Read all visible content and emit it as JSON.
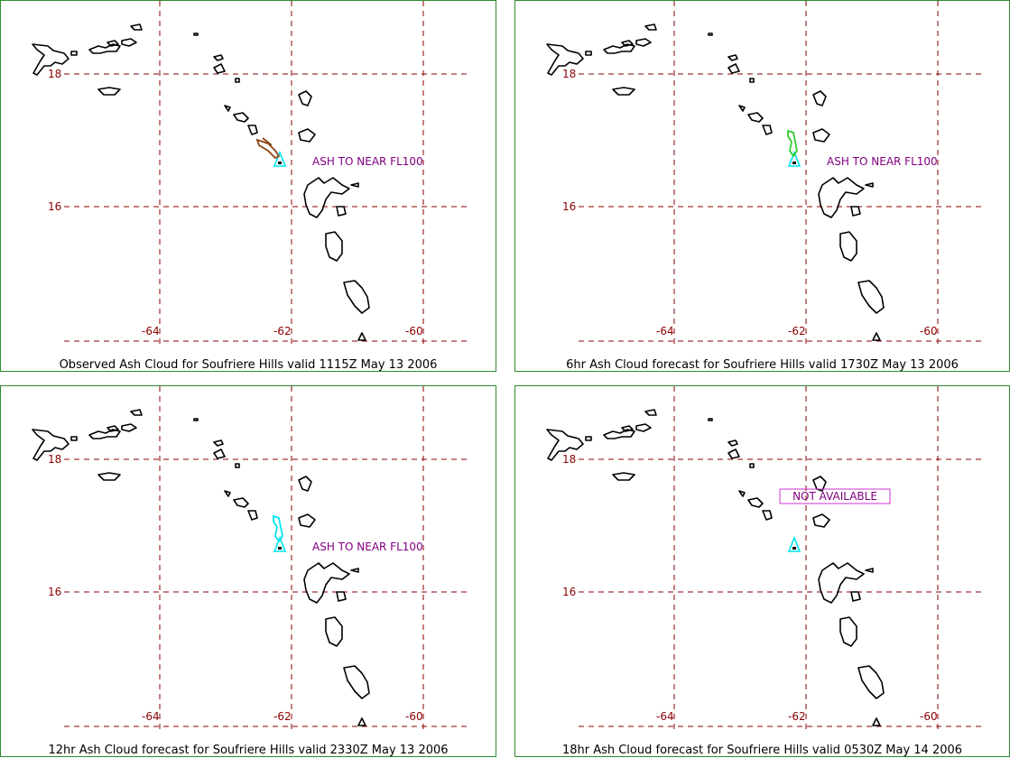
{
  "panels": [
    {
      "caption": "Observed Ash Cloud for Soufriere  Hills valid 1115Z May 13 2006",
      "note": "ASH TO NEAR FL100",
      "note_style": "text",
      "ash_color": "#8b4513",
      "ash_type": "diagonal"
    },
    {
      "caption": "6hr Ash Cloud forecast for Soufriere  Hills valid 1730Z May 13 2006",
      "note": "ASH TO NEAR FL100",
      "note_style": "text",
      "ash_color": "#33cc33",
      "ash_type": "north"
    },
    {
      "caption": "12hr Ash Cloud forecast for Soufriere  Hills valid 2330Z May 13 2006",
      "note": "ASH TO NEAR FL100",
      "note_style": "text",
      "ash_color": "#00e5ee",
      "ash_type": "north"
    },
    {
      "caption": "18hr Ash Cloud forecast for Soufriere  Hills valid 0530Z May 14 2006",
      "note": "NOT AVAILABLE",
      "note_style": "boxed",
      "ash_color": "",
      "ash_type": "none"
    }
  ],
  "grid": {
    "lat_labels": [
      "18",
      "16"
    ],
    "lon_labels": [
      "-64",
      "-62",
      "-60"
    ]
  },
  "colors": {
    "grid": "#8b0000",
    "coastline": "#000000",
    "volcano": "#00e5ee",
    "note": "#800080",
    "border": "#2e8b2e"
  }
}
